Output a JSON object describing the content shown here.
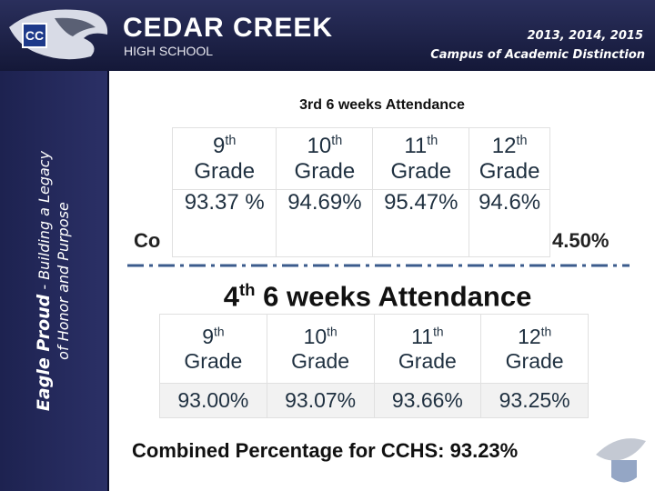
{
  "header": {
    "school_name": "CEDAR CREEK",
    "school_sub": "HIGH SCHOOL",
    "years": "2013, 2014, 2015",
    "distinction": "Campus of Academic Distinction"
  },
  "sidebar": {
    "motto_bold": "Eagle Proud",
    "motto_rest": " - Building a Legacy",
    "motto_line2": "of Honor and Purpose"
  },
  "period3": {
    "title": "3rd 6 weeks Attendance",
    "headers": [
      {
        "num": "9",
        "sup": "th",
        "word": "Grade"
      },
      {
        "num": "10",
        "sup": "th",
        "word": "Grade"
      },
      {
        "num": "11",
        "sup": "th",
        "word": "Grade"
      },
      {
        "num": "12",
        "sup": "th",
        "word": "Grade"
      }
    ],
    "values": [
      "93.37 %",
      "94.69%",
      "95.47%",
      "94.6%"
    ],
    "combined_start": "Co",
    "combined_end": "4.50%"
  },
  "period4": {
    "title_num": "4",
    "title_sup": "th",
    "title_rest": " 6 weeks Attendance",
    "headers": [
      {
        "num": "9",
        "sup": "th",
        "word": "Grade"
      },
      {
        "num": "10",
        "sup": "th",
        "word": "Grade"
      },
      {
        "num": "11",
        "sup": "th",
        "word": "Grade"
      },
      {
        "num": "12",
        "sup": "th",
        "word": "Grade"
      }
    ],
    "values": [
      "93.00%",
      "93.07%",
      "93.66%",
      "93.25%"
    ],
    "combined": "Combined Percentage for CCHS: 93.23%"
  }
}
